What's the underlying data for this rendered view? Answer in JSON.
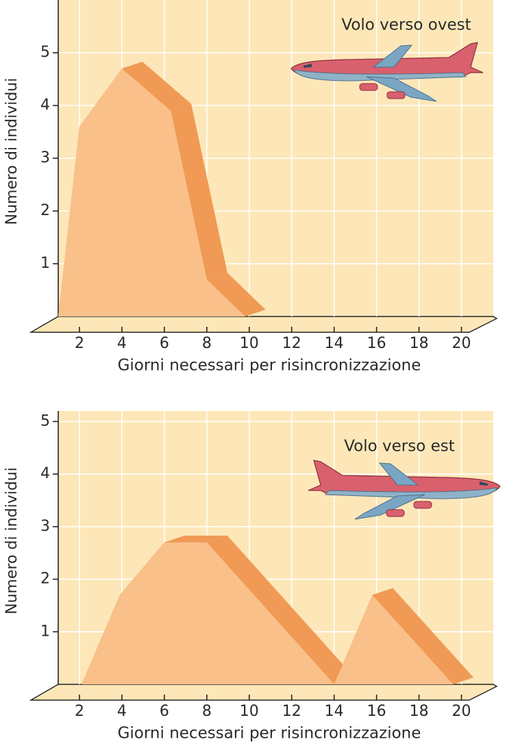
{
  "chart_data": [
    {
      "type": "area",
      "annotation": "Volo verso ovest",
      "xlabel": "Giorni necessari per risincronizzazione",
      "ylabel": "Numero di individui",
      "x": [
        1,
        2,
        4,
        6.3,
        8,
        9.8
      ],
      "values": [
        0,
        3.6,
        4.7,
        3.9,
        0.7,
        0
      ],
      "color": "#f9c08a",
      "xlim": [
        1,
        21.5
      ],
      "ylim": [
        0,
        6
      ],
      "xticks": [
        2,
        4,
        6,
        8,
        10,
        12,
        14,
        16,
        18,
        20
      ],
      "yticks": [
        1,
        2,
        3,
        4,
        5
      ],
      "grid": true
    },
    {
      "type": "area",
      "annotation": "Volo verso est",
      "xlabel": "Giorni necessari per risincronizzazione",
      "ylabel": "Numero di individui",
      "x": [
        2.1,
        3.9,
        6,
        8,
        14,
        15.8,
        19.6
      ],
      "values": [
        0,
        1.7,
        2.7,
        2.7,
        0,
        1.7,
        0
      ],
      "color": "#f9c08a",
      "xlim": [
        1,
        21.5
      ],
      "ylim": [
        0,
        5.2
      ],
      "xticks": [
        2,
        4,
        6,
        8,
        10,
        12,
        14,
        16,
        18,
        20
      ],
      "yticks": [
        1,
        2,
        3,
        4,
        5
      ],
      "grid": true
    }
  ]
}
